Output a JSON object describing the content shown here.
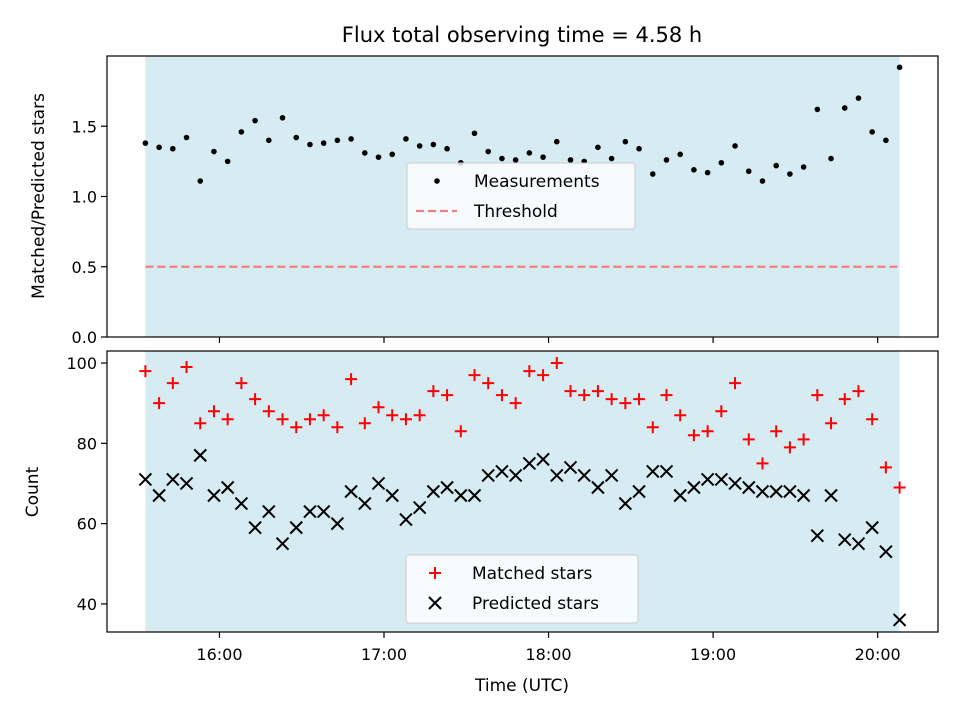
{
  "figure": {
    "title": "Flux total observing time = 4.58 h",
    "xlabel": "Time (UTC)"
  },
  "chart_data": [
    {
      "type": "scatter",
      "ylabel": "Matched/Predicted stars",
      "ylim": [
        0,
        2.0
      ],
      "yticks": [
        0.0,
        0.5,
        1.0,
        1.5
      ],
      "ytick_labels": [
        "0.0",
        "0.5",
        "1.0",
        "1.5"
      ],
      "xlim": [
        "15:19",
        "20:22"
      ],
      "xticks": [
        "16:00",
        "17:00",
        "18:00",
        "19:00",
        "20:00"
      ],
      "observing_span": [
        "15:33",
        "20:08"
      ],
      "grid": false,
      "legend_position": "center",
      "series": [
        {
          "name": "Measurements",
          "marker": "dot",
          "color": "#000000",
          "x": [
            "15:33",
            "15:38",
            "15:43",
            "15:48",
            "15:53",
            "15:58",
            "16:03",
            "16:08",
            "16:13",
            "16:18",
            "16:23",
            "16:28",
            "16:33",
            "16:38",
            "16:43",
            "16:48",
            "16:53",
            "16:58",
            "17:03",
            "17:08",
            "17:13",
            "17:18",
            "17:23",
            "17:28",
            "17:33",
            "17:38",
            "17:43",
            "17:48",
            "17:53",
            "17:58",
            "18:03",
            "18:08",
            "18:13",
            "18:18",
            "18:23",
            "18:28",
            "18:33",
            "18:38",
            "18:43",
            "18:48",
            "18:53",
            "18:58",
            "19:03",
            "19:08",
            "19:13",
            "19:18",
            "19:23",
            "19:28",
            "19:33",
            "19:38",
            "19:43",
            "19:48",
            "19:53",
            "19:58",
            "20:03",
            "20:08"
          ],
          "y": [
            1.38,
            1.35,
            1.34,
            1.42,
            1.11,
            1.32,
            1.25,
            1.46,
            1.54,
            1.4,
            1.56,
            1.42,
            1.37,
            1.38,
            1.4,
            1.41,
            1.31,
            1.28,
            1.3,
            1.41,
            1.36,
            1.37,
            1.34,
            1.24,
            1.45,
            1.32,
            1.27,
            1.26,
            1.31,
            1.28,
            1.39,
            1.26,
            1.25,
            1.35,
            1.27,
            1.39,
            1.34,
            1.16,
            1.26,
            1.3,
            1.19,
            1.17,
            1.24,
            1.36,
            1.18,
            1.11,
            1.22,
            1.16,
            1.21,
            1.62,
            1.27,
            1.63,
            1.7,
            1.46,
            1.4,
            1.92
          ]
        },
        {
          "name": "Threshold",
          "line": "dashed",
          "color": "#f08080",
          "value": 0.5
        }
      ]
    },
    {
      "type": "scatter",
      "ylabel": "Count",
      "ylim": [
        33,
        103
      ],
      "yticks": [
        40,
        60,
        80,
        100
      ],
      "ytick_labels": [
        "40",
        "60",
        "80",
        "100"
      ],
      "xticks": [
        "16:00",
        "17:00",
        "18:00",
        "19:00",
        "20:00"
      ],
      "observing_span": [
        "15:33",
        "20:08"
      ],
      "grid": false,
      "legend_position": "bottom-center",
      "series": [
        {
          "name": "Matched stars",
          "marker": "plus",
          "color": "#ff0000",
          "x": [
            "15:33",
            "15:38",
            "15:43",
            "15:48",
            "15:53",
            "15:58",
            "16:03",
            "16:08",
            "16:13",
            "16:18",
            "16:23",
            "16:28",
            "16:33",
            "16:38",
            "16:43",
            "16:48",
            "16:53",
            "16:58",
            "17:03",
            "17:08",
            "17:13",
            "17:18",
            "17:23",
            "17:28",
            "17:33",
            "17:38",
            "17:43",
            "17:48",
            "17:53",
            "17:58",
            "18:03",
            "18:08",
            "18:13",
            "18:18",
            "18:23",
            "18:28",
            "18:33",
            "18:38",
            "18:43",
            "18:48",
            "18:53",
            "18:58",
            "19:03",
            "19:08",
            "19:13",
            "19:18",
            "19:23",
            "19:28",
            "19:33",
            "19:38",
            "19:43",
            "19:48",
            "19:53",
            "19:58",
            "20:03",
            "20:08"
          ],
          "y": [
            98,
            90,
            95,
            99,
            85,
            88,
            86,
            95,
            91,
            88,
            86,
            84,
            86,
            87,
            84,
            96,
            85,
            89,
            87,
            86,
            87,
            93,
            92,
            83,
            97,
            95,
            92,
            90,
            98,
            97,
            100,
            93,
            92,
            93,
            91,
            90,
            91,
            84,
            92,
            87,
            82,
            83,
            88,
            95,
            81,
            75,
            83,
            79,
            81,
            92,
            85,
            91,
            93,
            86,
            74,
            69
          ]
        },
        {
          "name": "Predicted stars",
          "marker": "x",
          "color": "#000000",
          "x": [
            "15:33",
            "15:38",
            "15:43",
            "15:48",
            "15:53",
            "15:58",
            "16:03",
            "16:08",
            "16:13",
            "16:18",
            "16:23",
            "16:28",
            "16:33",
            "16:38",
            "16:43",
            "16:48",
            "16:53",
            "16:58",
            "17:03",
            "17:08",
            "17:13",
            "17:18",
            "17:23",
            "17:28",
            "17:33",
            "17:38",
            "17:43",
            "17:48",
            "17:53",
            "17:58",
            "18:03",
            "18:08",
            "18:13",
            "18:18",
            "18:23",
            "18:28",
            "18:33",
            "18:38",
            "18:43",
            "18:48",
            "18:53",
            "18:58",
            "19:03",
            "19:08",
            "19:13",
            "19:18",
            "19:23",
            "19:28",
            "19:33",
            "19:38",
            "19:43",
            "19:48",
            "19:53",
            "19:58",
            "20:03",
            "20:08"
          ],
          "y": [
            71,
            67,
            71,
            70,
            77,
            67,
            69,
            65,
            59,
            63,
            55,
            59,
            63,
            63,
            60,
            68,
            65,
            70,
            67,
            61,
            64,
            68,
            69,
            67,
            67,
            72,
            73,
            72,
            75,
            76,
            72,
            74,
            72,
            69,
            72,
            65,
            68,
            73,
            73,
            67,
            69,
            71,
            71,
            70,
            69,
            68,
            68,
            68,
            67,
            57,
            67,
            56,
            55,
            59,
            53,
            36
          ]
        }
      ]
    }
  ]
}
